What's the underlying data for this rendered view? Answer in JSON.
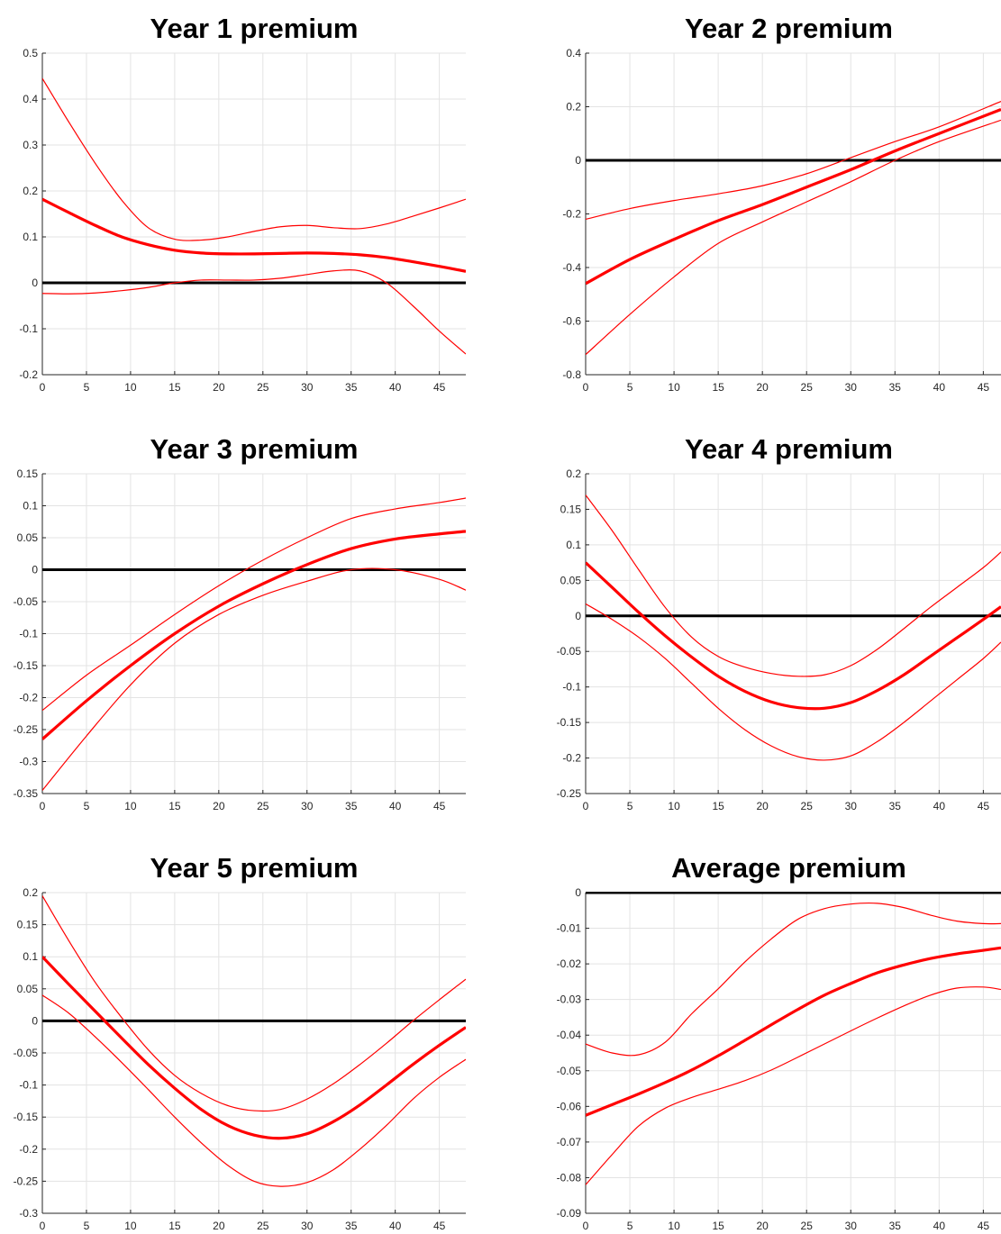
{
  "chart_data": [
    {
      "type": "line",
      "title": "Year 1 premium",
      "xlim": [
        0,
        48
      ],
      "ylim": [
        -0.2,
        0.5
      ],
      "xticks": [
        0,
        5,
        10,
        15,
        20,
        25,
        30,
        35,
        40,
        45
      ],
      "yticks": [
        -0.2,
        -0.1,
        0,
        0.1,
        0.2,
        0.3,
        0.4,
        0.5
      ],
      "ytick_labels": [
        "-0.2",
        "-0.1",
        "0",
        "0.1",
        "0.2",
        "0.3",
        "0.4",
        "0.5"
      ],
      "grid": true,
      "zero_line": 0,
      "x": [
        0,
        3,
        6,
        9,
        12,
        15,
        18,
        21,
        24,
        27,
        30,
        33,
        36,
        39,
        42,
        45,
        48
      ],
      "series": [
        {
          "role": "estimate",
          "values": [
            0.182,
            0.153,
            0.125,
            0.1,
            0.083,
            0.071,
            0.065,
            0.063,
            0.063,
            0.064,
            0.065,
            0.064,
            0.061,
            0.055,
            0.046,
            0.036,
            0.025
          ]
        },
        {
          "role": "upper",
          "values": [
            0.445,
            0.35,
            0.26,
            0.18,
            0.12,
            0.095,
            0.093,
            0.1,
            0.112,
            0.122,
            0.125,
            0.12,
            0.118,
            0.128,
            0.145,
            0.163,
            0.182
          ]
        },
        {
          "role": "lower",
          "values": [
            -0.023,
            -0.024,
            -0.022,
            -0.017,
            -0.01,
            0.0,
            0.006,
            0.006,
            0.006,
            0.01,
            0.018,
            0.026,
            0.026,
            0.0,
            -0.05,
            -0.105,
            -0.155
          ]
        }
      ]
    },
    {
      "type": "line",
      "title": "Year 2 premium",
      "xlim": [
        0,
        47
      ],
      "ylim": [
        -0.8,
        0.4
      ],
      "xticks": [
        0,
        5,
        10,
        15,
        20,
        25,
        30,
        35,
        40,
        45
      ],
      "yticks": [
        -0.8,
        -0.6,
        -0.4,
        -0.2,
        0,
        0.2,
        0.4
      ],
      "ytick_labels": [
        "-0.8",
        "-0.6",
        "-0.4",
        "-0.2",
        "0",
        "0.2",
        "0.4"
      ],
      "grid": true,
      "zero_line": 0,
      "x": [
        0,
        5,
        10,
        15,
        20,
        25,
        30,
        35,
        40,
        47
      ],
      "series": [
        {
          "role": "estimate",
          "values": [
            -0.46,
            -0.37,
            -0.295,
            -0.225,
            -0.165,
            -0.1,
            -0.035,
            0.035,
            0.1,
            0.19
          ]
        },
        {
          "role": "upper",
          "values": [
            -0.22,
            -0.18,
            -0.15,
            -0.125,
            -0.095,
            -0.05,
            0.01,
            0.07,
            0.125,
            0.22
          ]
        },
        {
          "role": "lower",
          "values": [
            -0.725,
            -0.575,
            -0.435,
            -0.31,
            -0.23,
            -0.155,
            -0.08,
            0.0,
            0.07,
            0.15
          ]
        }
      ]
    },
    {
      "type": "line",
      "title": "Year 3 premium",
      "xlim": [
        0,
        48
      ],
      "ylim": [
        -0.35,
        0.15
      ],
      "xticks": [
        0,
        5,
        10,
        15,
        20,
        25,
        30,
        35,
        40,
        45
      ],
      "yticks": [
        -0.35,
        -0.3,
        -0.25,
        -0.2,
        -0.15,
        -0.1,
        -0.05,
        0,
        0.05,
        0.1,
        0.15
      ],
      "ytick_labels": [
        "-0.35",
        "-0.3",
        "-0.25",
        "-0.2",
        "-0.15",
        "-0.1",
        "-0.05",
        "0",
        "0.05",
        "0.1",
        "0.15"
      ],
      "grid": true,
      "zero_line": 0,
      "x": [
        0,
        5,
        10,
        15,
        20,
        25,
        30,
        35,
        40,
        45,
        48
      ],
      "series": [
        {
          "role": "estimate",
          "values": [
            -0.265,
            -0.205,
            -0.15,
            -0.1,
            -0.057,
            -0.022,
            0.008,
            0.033,
            0.048,
            0.056,
            0.06
          ]
        },
        {
          "role": "upper",
          "values": [
            -0.22,
            -0.165,
            -0.118,
            -0.07,
            -0.025,
            0.015,
            0.05,
            0.08,
            0.095,
            0.105,
            0.112
          ]
        },
        {
          "role": "lower",
          "values": [
            -0.345,
            -0.26,
            -0.18,
            -0.115,
            -0.07,
            -0.04,
            -0.018,
            0.0,
            0.0,
            -0.015,
            -0.032
          ]
        }
      ]
    },
    {
      "type": "line",
      "title": "Year 4 premium",
      "xlim": [
        0,
        47
      ],
      "ylim": [
        -0.25,
        0.2
      ],
      "xticks": [
        0,
        5,
        10,
        15,
        20,
        25,
        30,
        35,
        40,
        45
      ],
      "yticks": [
        -0.25,
        -0.2,
        -0.15,
        -0.1,
        -0.05,
        0,
        0.05,
        0.1,
        0.15,
        0.2
      ],
      "ytick_labels": [
        "-0.25",
        "-0.2",
        "-0.15",
        "-0.1",
        "-0.05",
        "0",
        "0.05",
        "0.1",
        "0.15",
        "0.2"
      ],
      "grid": true,
      "zero_line": 0,
      "x": [
        0,
        3,
        6,
        9,
        12,
        15,
        18,
        21,
        24,
        27,
        30,
        33,
        36,
        39,
        42,
        45,
        47
      ],
      "series": [
        {
          "role": "estimate",
          "values": [
            0.075,
            0.04,
            0.005,
            -0.028,
            -0.058,
            -0.085,
            -0.106,
            -0.121,
            -0.129,
            -0.13,
            -0.122,
            -0.105,
            -0.083,
            -0.057,
            -0.031,
            -0.005,
            0.013
          ]
        },
        {
          "role": "upper",
          "values": [
            0.17,
            0.12,
            0.065,
            0.012,
            -0.03,
            -0.057,
            -0.072,
            -0.081,
            -0.085,
            -0.083,
            -0.07,
            -0.047,
            -0.018,
            0.012,
            0.04,
            0.068,
            0.09
          ]
        },
        {
          "role": "lower",
          "values": [
            0.017,
            -0.005,
            -0.03,
            -0.06,
            -0.095,
            -0.13,
            -0.16,
            -0.183,
            -0.198,
            -0.203,
            -0.197,
            -0.177,
            -0.15,
            -0.12,
            -0.09,
            -0.06,
            -0.037
          ]
        }
      ]
    },
    {
      "type": "line",
      "title": "Year 5 premium",
      "xlim": [
        0,
        48
      ],
      "ylim": [
        -0.3,
        0.2
      ],
      "xticks": [
        0,
        5,
        10,
        15,
        20,
        25,
        30,
        35,
        40,
        45
      ],
      "yticks": [
        -0.3,
        -0.25,
        -0.2,
        -0.15,
        -0.1,
        -0.05,
        0,
        0.05,
        0.1,
        0.15,
        0.2
      ],
      "ytick_labels": [
        "-0.3",
        "-0.25",
        "-0.2",
        "-0.15",
        "-0.1",
        "-0.05",
        "0",
        "0.05",
        "0.1",
        "0.15",
        "0.2"
      ],
      "grid": true,
      "zero_line": 0,
      "x": [
        0,
        3,
        6,
        9,
        12,
        15,
        18,
        21,
        24,
        27,
        30,
        33,
        36,
        39,
        42,
        45,
        48
      ],
      "series": [
        {
          "role": "estimate",
          "values": [
            0.1,
            0.057,
            0.015,
            -0.027,
            -0.068,
            -0.105,
            -0.138,
            -0.163,
            -0.178,
            -0.183,
            -0.176,
            -0.157,
            -0.131,
            -0.1,
            -0.068,
            -0.038,
            -0.01
          ]
        },
        {
          "role": "upper",
          "values": [
            0.195,
            0.125,
            0.06,
            0.005,
            -0.045,
            -0.085,
            -0.113,
            -0.132,
            -0.14,
            -0.138,
            -0.122,
            -0.098,
            -0.068,
            -0.035,
            0.0,
            0.033,
            0.065
          ]
        },
        {
          "role": "lower",
          "values": [
            0.04,
            0.012,
            -0.025,
            -0.065,
            -0.107,
            -0.15,
            -0.19,
            -0.225,
            -0.25,
            -0.258,
            -0.252,
            -0.232,
            -0.2,
            -0.163,
            -0.122,
            -0.088,
            -0.06
          ]
        }
      ]
    },
    {
      "type": "line",
      "title": "Average premium",
      "xlim": [
        0,
        47
      ],
      "ylim": [
        -0.09,
        0
      ],
      "xticks": [
        0,
        5,
        10,
        15,
        20,
        25,
        30,
        35,
        40,
        45
      ],
      "yticks": [
        -0.09,
        -0.08,
        -0.07,
        -0.06,
        -0.05,
        -0.04,
        -0.03,
        -0.02,
        -0.01,
        0
      ],
      "ytick_labels": [
        "-0.09",
        "-0.08",
        "-0.07",
        "-0.06",
        "-0.05",
        "-0.04",
        "-0.03",
        "-0.02",
        "-0.01",
        "0"
      ],
      "grid": true,
      "zero_line": 0,
      "x": [
        0,
        3,
        6,
        9,
        12,
        15,
        18,
        21,
        24,
        27,
        30,
        33,
        36,
        39,
        42,
        45,
        47
      ],
      "series": [
        {
          "role": "estimate",
          "values": [
            -0.0625,
            -0.0595,
            -0.0565,
            -0.0533,
            -0.0498,
            -0.0458,
            -0.0415,
            -0.0371,
            -0.0328,
            -0.0288,
            -0.0255,
            -0.0225,
            -0.0203,
            -0.0185,
            -0.0172,
            -0.0162,
            -0.0155
          ]
        },
        {
          "role": "upper",
          "values": [
            -0.0425,
            -0.045,
            -0.0455,
            -0.042,
            -0.034,
            -0.027,
            -0.0195,
            -0.013,
            -0.0075,
            -0.0045,
            -0.0032,
            -0.003,
            -0.0042,
            -0.0063,
            -0.008,
            -0.0087,
            -0.0087
          ]
        },
        {
          "role": "lower",
          "values": [
            -0.082,
            -0.0735,
            -0.0655,
            -0.0605,
            -0.0575,
            -0.0552,
            -0.0528,
            -0.0498,
            -0.0462,
            -0.0425,
            -0.0388,
            -0.0352,
            -0.0318,
            -0.0288,
            -0.0268,
            -0.0265,
            -0.0272
          ]
        }
      ]
    }
  ],
  "colors": {
    "estimate": "#ff0000",
    "band": "#ff0000",
    "zero_line": "#000000",
    "grid": "#e3e3e3",
    "axis": "#262626"
  }
}
